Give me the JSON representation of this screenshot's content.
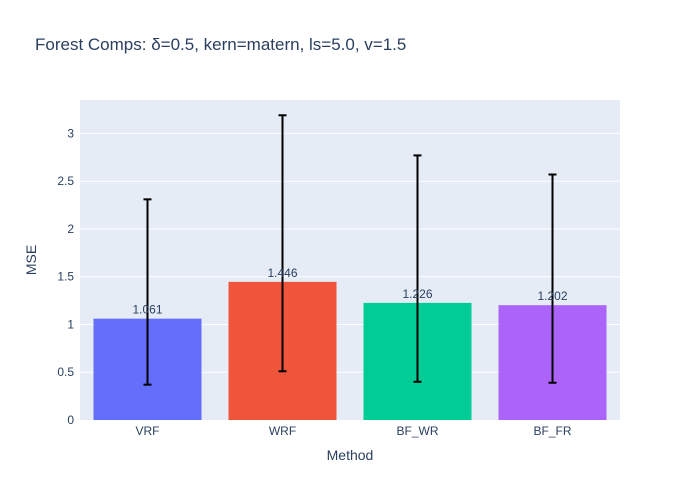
{
  "chart_data": {
    "type": "bar",
    "title": "Forest Comps: δ=0.5, kern=matern, ls=5.0, v=1.5",
    "xlabel": "Method",
    "ylabel": "MSE",
    "categories": [
      "VRF",
      "WRF",
      "BF_WR",
      "BF_FR"
    ],
    "values": [
      1.061,
      1.446,
      1.226,
      1.202
    ],
    "value_labels": [
      "1.061",
      "1.446",
      "1.226",
      "1.202"
    ],
    "error_low": [
      0.37,
      0.51,
      0.4,
      0.39
    ],
    "error_high": [
      2.31,
      3.19,
      2.77,
      2.57
    ],
    "colors": [
      "#636efa",
      "#ef553b",
      "#00cc96",
      "#ab63fa"
    ],
    "ylim": [
      0,
      3.35
    ],
    "yticks": [
      0,
      0.5,
      1,
      1.5,
      2,
      2.5,
      3
    ],
    "ytick_labels": [
      "0",
      "0.5",
      "1",
      "1.5",
      "2",
      "2.5",
      "3"
    ],
    "grid": true,
    "legend": "none",
    "background": "#e5ecf6"
  }
}
